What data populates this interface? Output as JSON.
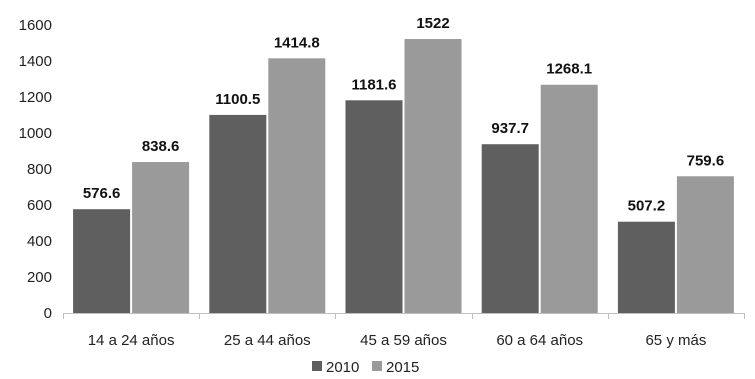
{
  "chart_data": {
    "type": "bar",
    "categories": [
      "14 a 24 años",
      "25 a 44 años",
      "45 a 59 años",
      "60 a 64 años",
      "65 y más"
    ],
    "series": [
      {
        "name": "2010",
        "color": "#5f5f5f",
        "values": [
          576.6,
          1100.5,
          1181.6,
          937.7,
          507.2
        ],
        "labels": [
          "576.6",
          "1100.5",
          "1181.6",
          "937.7",
          "507.2"
        ]
      },
      {
        "name": "2015",
        "color": "#9a9a9a",
        "values": [
          838.6,
          1414.8,
          1522,
          1268.1,
          759.6
        ],
        "labels": [
          "838.6",
          "1414.8",
          "1522",
          "1268.1",
          "759.6"
        ]
      }
    ],
    "title": "",
    "xlabel": "",
    "ylabel": "",
    "ylim": [
      0,
      1600
    ],
    "yticks": [
      0,
      200,
      400,
      600,
      800,
      1000,
      1200,
      1400,
      1600
    ],
    "grid": false,
    "legend_position": "bottom"
  }
}
